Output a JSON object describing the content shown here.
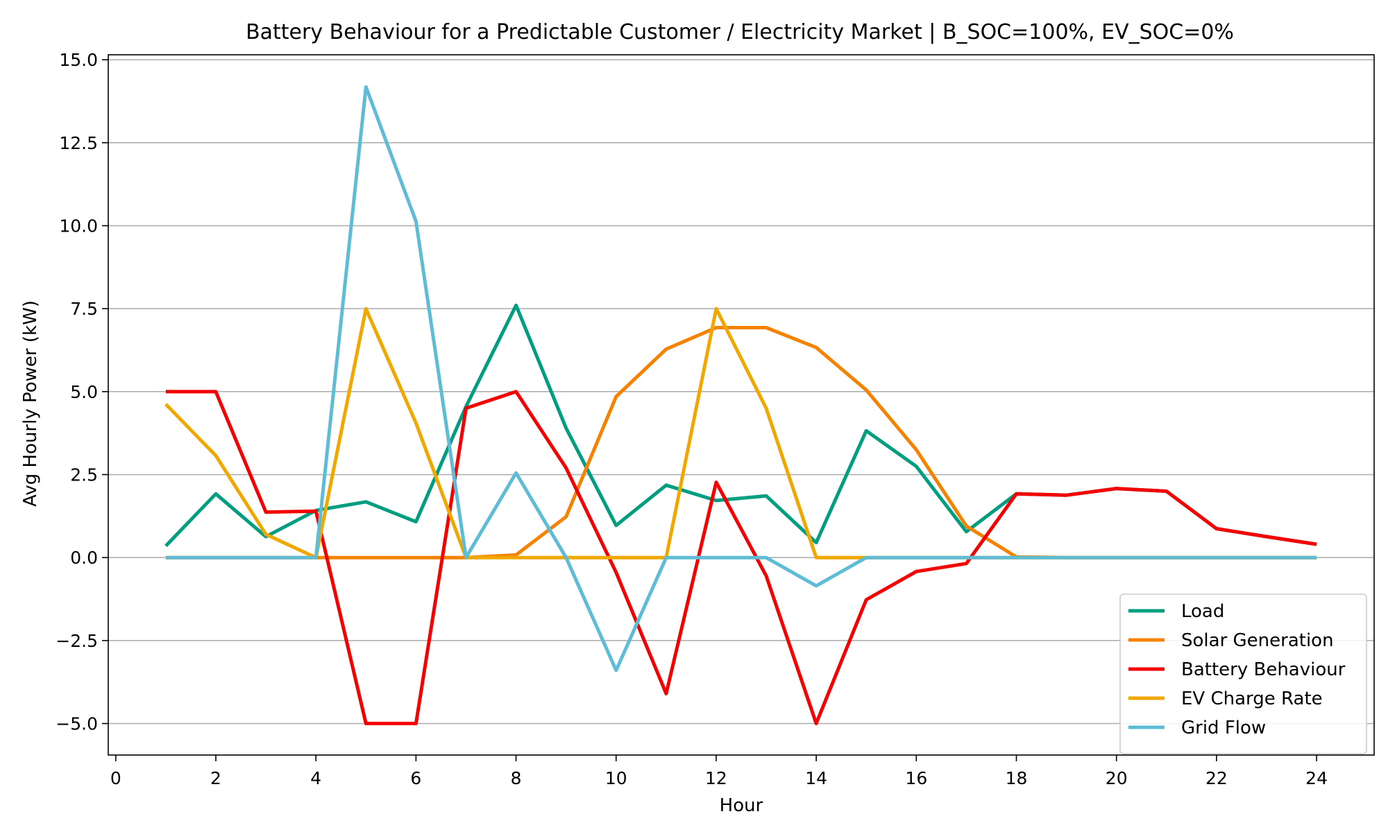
{
  "chart_data": {
    "type": "line",
    "title": "Battery Behaviour for a Predictable Customer / Electricity Market | B_SOC=100%, EV_SOC=0%",
    "xlabel": "Hour",
    "ylabel": "Avg Hourly Power (kW)",
    "xlim": [
      -0.15,
      25.15
    ],
    "ylim": [
      -5.95,
      15.15
    ],
    "x_ticks": [
      0,
      2,
      4,
      6,
      8,
      10,
      12,
      14,
      16,
      18,
      20,
      22,
      24
    ],
    "y_ticks": [
      -5.0,
      -2.5,
      0.0,
      2.5,
      5.0,
      7.5,
      10.0,
      12.5,
      15.0
    ],
    "y_tick_labels": [
      "−5.0",
      "−2.5",
      "0.0",
      "2.5",
      "5.0",
      "7.5",
      "10.0",
      "12.5",
      "15.0"
    ],
    "grid": "horizontal",
    "legend_position": "lower-right",
    "x": [
      1,
      2,
      3,
      4,
      5,
      6,
      7,
      8,
      9,
      10,
      11,
      12,
      13,
      14,
      15,
      16,
      17,
      18,
      19,
      20,
      21,
      22,
      23,
      24
    ],
    "series": [
      {
        "name": "Load",
        "color": "#009e80",
        "values": [
          0.35,
          1.92,
          0.63,
          1.42,
          1.68,
          1.08,
          4.55,
          7.6,
          3.9,
          0.97,
          2.18,
          1.72,
          1.86,
          0.45,
          3.82,
          2.75,
          0.78,
          1.92,
          1.88,
          2.08,
          2.0,
          0.87,
          0.63,
          0.4
        ]
      },
      {
        "name": "Solar Generation",
        "color": "#f58200",
        "values": [
          0,
          0,
          0,
          0,
          0,
          0,
          0,
          0.08,
          1.23,
          4.85,
          6.28,
          6.93,
          6.93,
          6.33,
          5.05,
          3.25,
          0.95,
          0.02,
          0,
          0,
          0,
          0,
          0,
          0
        ]
      },
      {
        "name": "Battery Behaviour",
        "color": "#f50000",
        "values": [
          5.0,
          5.0,
          1.37,
          1.4,
          -5.0,
          -5.0,
          4.5,
          5.0,
          2.7,
          -0.45,
          -4.1,
          2.27,
          -0.55,
          -5.0,
          -1.27,
          -0.42,
          -0.18,
          1.92,
          1.88,
          2.08,
          2.0,
          0.87,
          0.63,
          0.4
        ]
      },
      {
        "name": "EV Charge Rate",
        "color": "#f0a800",
        "values": [
          4.62,
          3.07,
          0.7,
          0.0,
          7.5,
          4.05,
          0.0,
          0.0,
          0.0,
          0.0,
          0.0,
          7.5,
          4.5,
          0.0,
          0.0,
          0.0,
          0.0,
          0.0,
          0.0,
          0.0,
          0.0,
          0.0,
          0.0,
          0.0
        ]
      },
      {
        "name": "Grid Flow",
        "color": "#5ebcd6",
        "values": [
          0,
          0,
          0,
          0,
          14.18,
          10.13,
          0.0,
          2.55,
          0.0,
          -3.4,
          0.0,
          0.0,
          0.0,
          -0.85,
          0.0,
          0.0,
          0.0,
          0.0,
          0.0,
          0.0,
          0.0,
          0.0,
          0.0,
          0.0
        ]
      }
    ]
  }
}
